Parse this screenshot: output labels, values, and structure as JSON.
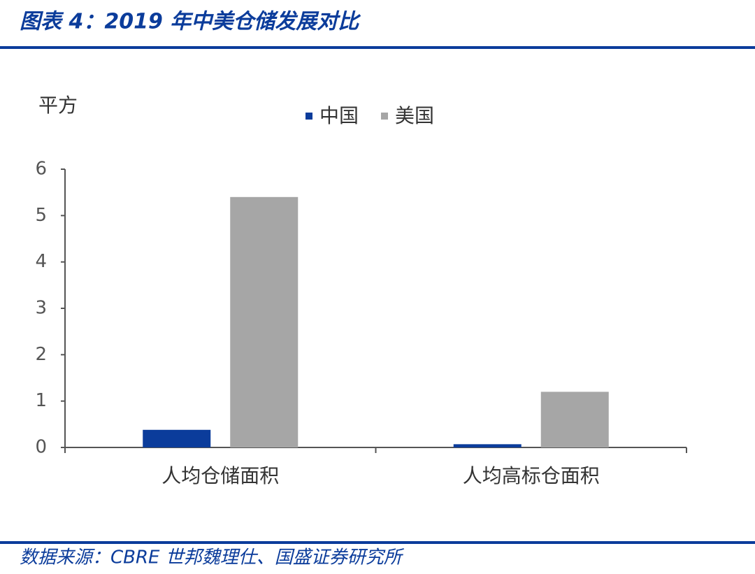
{
  "chart_data": {
    "type": "bar",
    "title": "图表 4：2019 年中美仓储发展对比",
    "y_label": "平方",
    "categories": [
      "人均仓储面积",
      "人均高标仓面积"
    ],
    "series": [
      {
        "name": "中国",
        "color": "#0b3c9b",
        "values": [
          0.38,
          0.07
        ]
      },
      {
        "name": "美国",
        "color": "#a6a6a6",
        "values": [
          5.4,
          1.2
        ]
      }
    ],
    "ylim": [
      0,
      6
    ],
    "yticks": [
      0,
      1,
      2,
      3,
      4,
      5,
      6
    ],
    "source": "数据来源：CBRE 世邦魏理仕、国盛证券研究所"
  }
}
